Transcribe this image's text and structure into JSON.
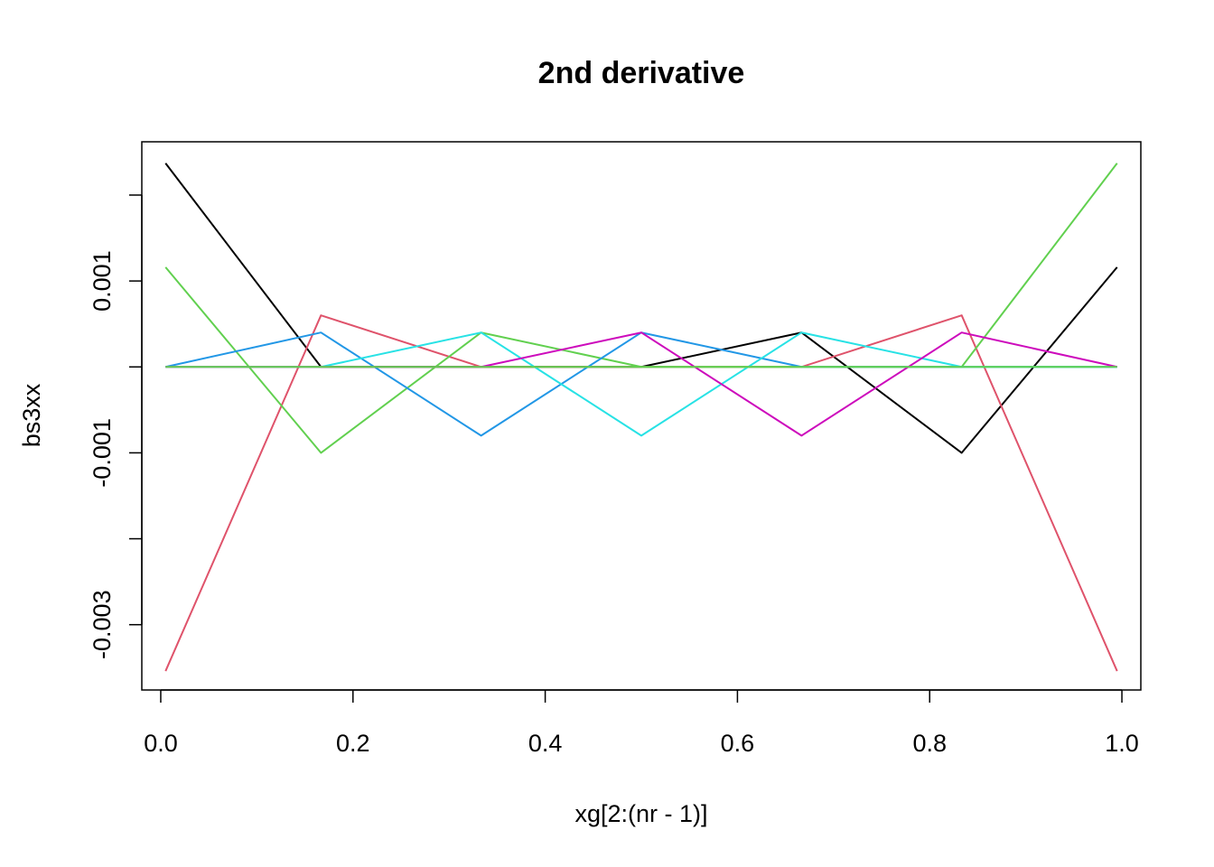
{
  "chart_data": {
    "type": "line",
    "title": "2nd derivative",
    "xlabel": "xg[2:(nr - 1)]",
    "ylabel": "bs3xx",
    "xlim": [
      -0.0197,
      1.0197
    ],
    "ylim": [
      -0.00376,
      0.00262
    ],
    "xticks": [
      0.0,
      0.2,
      0.4,
      0.6,
      0.8,
      1.0
    ],
    "xtick_labels": [
      "0.0",
      "0.2",
      "0.4",
      "0.6",
      "0.8",
      "1.0"
    ],
    "yticks": [
      -0.003,
      -0.002,
      -0.001,
      0.0,
      0.001,
      0.002
    ],
    "ytick_labels": [
      "-0.003",
      "",
      "-0.001",
      "",
      "0.001",
      ""
    ],
    "grid": false,
    "series": [
      {
        "color": "#000000",
        "x": [
          0.005,
          0.1667,
          0.3333,
          0.5,
          0.6667,
          0.8333,
          0.995
        ],
        "values": [
          0.00237,
          0.0,
          0.0,
          0.0,
          0.0004,
          -0.001,
          0.00116
        ]
      },
      {
        "color": "#DF536B",
        "x": [
          0.005,
          0.1667,
          0.3333,
          0.5,
          0.6667,
          0.8333,
          0.995
        ],
        "values": [
          -0.00354,
          0.0006,
          0.0,
          0.0,
          0.0,
          0.0006,
          -0.00354
        ]
      },
      {
        "color": "#61D04F",
        "x": [
          0.005,
          0.1667,
          0.3333,
          0.5,
          0.6667,
          0.8333,
          0.995
        ],
        "values": [
          0.00116,
          -0.001,
          0.0004,
          0.0,
          0.0,
          0.0,
          0.00237
        ]
      },
      {
        "color": "#2297E6",
        "x": [
          0.005,
          0.1667,
          0.3333,
          0.5,
          0.6667,
          0.8333,
          0.995
        ],
        "values": [
          0.0,
          0.0004,
          -0.0008,
          0.0004,
          0.0,
          0.0,
          0.0
        ]
      },
      {
        "color": "#28E2E5",
        "x": [
          0.005,
          0.1667,
          0.3333,
          0.5,
          0.6667,
          0.8333,
          0.995
        ],
        "values": [
          0.0,
          0.0,
          0.0004,
          -0.0008,
          0.0004,
          0.0,
          0.0
        ]
      },
      {
        "color": "#CD0BBC",
        "x": [
          0.005,
          0.1667,
          0.3333,
          0.5,
          0.6667,
          0.8333,
          0.995
        ],
        "values": [
          0.0,
          0.0,
          0.0,
          0.0004,
          -0.0008,
          0.0004,
          0.0
        ]
      },
      {
        "color": "#61D04F",
        "x": [
          0.005,
          0.1667,
          0.3333,
          0.5,
          0.6667,
          0.8333,
          0.995
        ],
        "values": [
          0.0,
          0.0,
          0.0,
          0.0,
          0.0,
          0.0,
          0.0
        ]
      }
    ]
  }
}
